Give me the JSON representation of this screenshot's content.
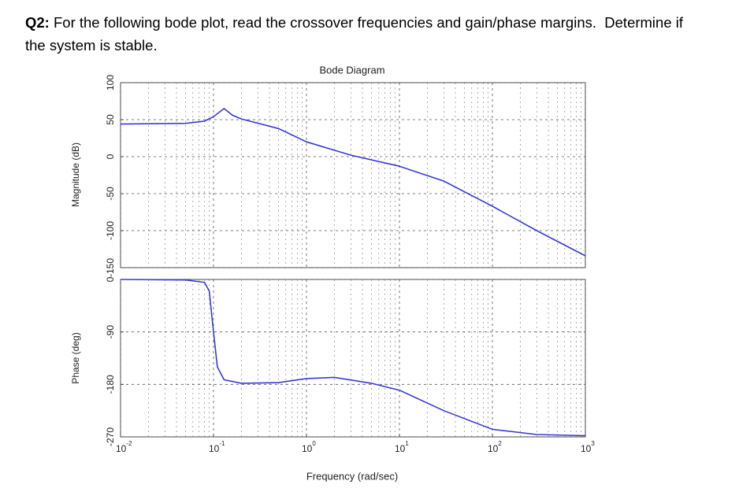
{
  "question": {
    "label": "Q2:",
    "lines": [
      " For the following bode plot, read the crossover frequencies and gain/phase margins.  Determine if",
      "the system is stable."
    ]
  },
  "chart_data": [
    {
      "type": "line",
      "title": "Bode Diagram",
      "ylabel": "Magnitude (dB)",
      "log_x": true,
      "grid": true,
      "xlim": [
        0.01,
        1000
      ],
      "ylim": [
        -150,
        100
      ],
      "yticks": [
        -150,
        -100,
        -50,
        0,
        50,
        100
      ],
      "x": [
        0.01,
        0.05,
        0.08,
        0.1,
        0.13,
        0.16,
        0.2,
        0.5,
        1,
        3,
        10,
        30,
        100,
        300,
        1000
      ],
      "series": [
        {
          "name": "Magnitude",
          "color": "#3a3ad8",
          "values": [
            44,
            45,
            48,
            54,
            65,
            56,
            51,
            38,
            20,
            2,
            -13,
            -33,
            -67,
            -100,
            -134
          ]
        }
      ]
    },
    {
      "type": "line",
      "ylabel": "Phase (deg)",
      "xlabel": "Frequency (rad/sec)",
      "log_x": true,
      "grid": true,
      "xlim": [
        0.01,
        1000
      ],
      "xticks": [
        {
          "value": 0.01,
          "label": "10-2"
        },
        {
          "value": 0.1,
          "label": "10-1"
        },
        {
          "value": 1,
          "label": "100"
        },
        {
          "value": 10,
          "label": "101"
        },
        {
          "value": 100,
          "label": "102"
        },
        {
          "value": 1000,
          "label": "103"
        }
      ],
      "ylim": [
        -270,
        0
      ],
      "yticks": [
        -270,
        -180,
        -90,
        0
      ],
      "x": [
        0.01,
        0.05,
        0.08,
        0.09,
        0.1,
        0.11,
        0.13,
        0.2,
        0.5,
        1,
        2,
        5,
        10,
        30,
        100,
        300,
        1000
      ],
      "series": [
        {
          "name": "Phase",
          "color": "#3a3ad8",
          "values": [
            0,
            -1,
            -5,
            -20,
            -90,
            -150,
            -172,
            -178,
            -177,
            -170,
            -168,
            -178,
            -190,
            -225,
            -257,
            -266,
            -268
          ]
        }
      ]
    }
  ]
}
